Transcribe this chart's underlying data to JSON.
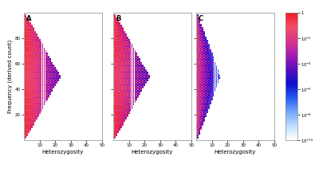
{
  "panels": [
    "A",
    "B",
    "C"
  ],
  "xlabel": "Heterozygosity",
  "ylabel": "Frequency (derived count)",
  "xticks": [
    10,
    20,
    30,
    40,
    50
  ],
  "yticks": [
    20,
    40,
    60,
    80
  ],
  "background_color": "#ffffff",
  "panel_label_fontsize": 6,
  "axis_label_fontsize": 5,
  "tick_fontsize": 4,
  "panel_A_max_het_scale": 0.46,
  "panel_B_max_het_scale": 0.46,
  "panel_C_max_het_scale": 0.3,
  "colorbar_ticks": [
    1,
    0.01,
    0.0001,
    1e-06,
    1e-08,
    1e-10
  ],
  "colorbar_labels": [
    "1",
    "10^{-2}",
    "10^{-4}",
    "10^{-6}",
    "10^{-8}",
    "10^{-10}"
  ]
}
